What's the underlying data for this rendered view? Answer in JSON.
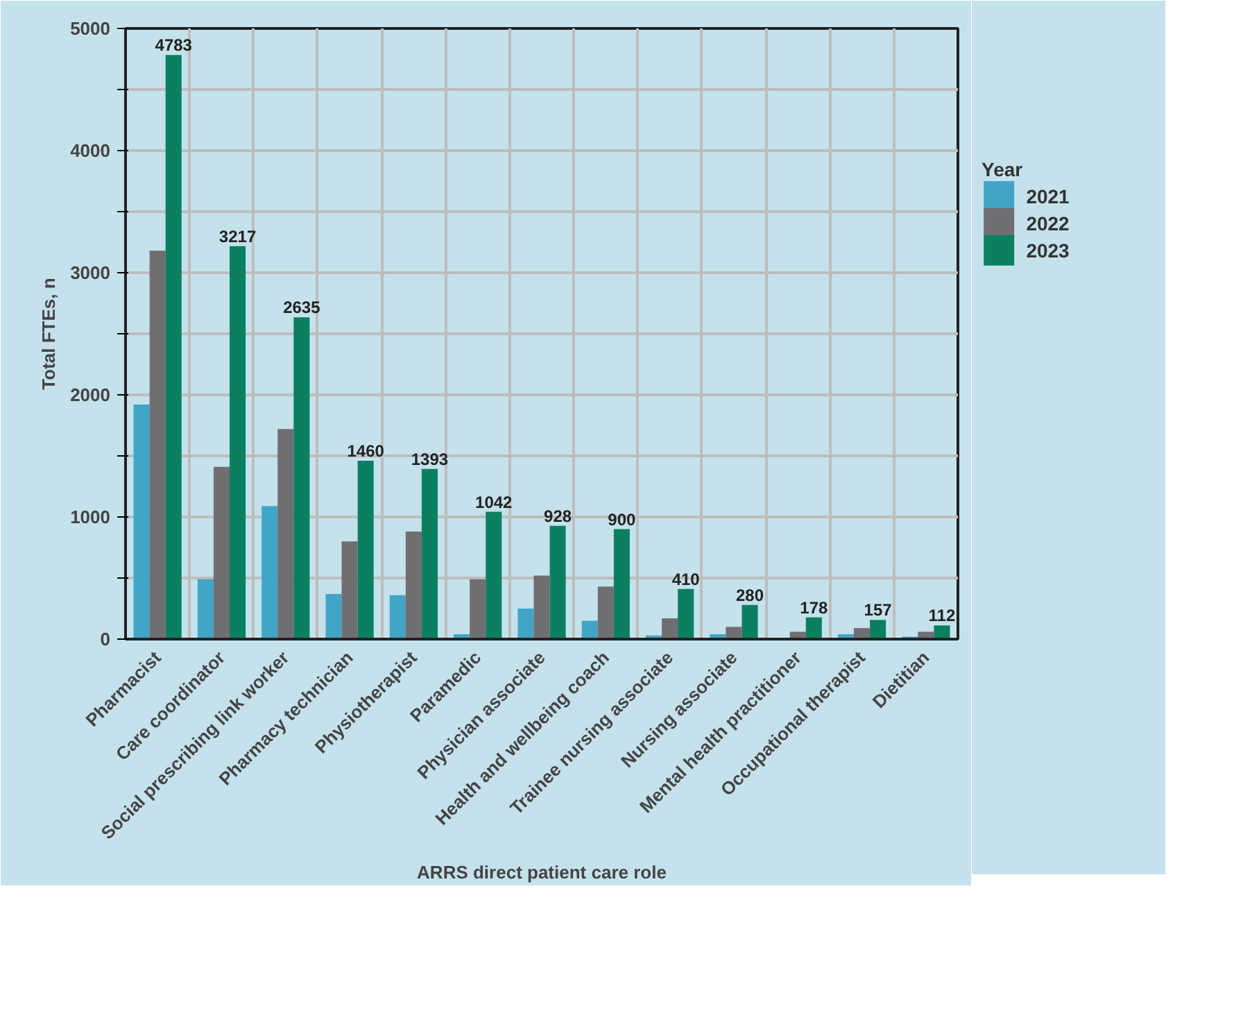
{
  "chart_data": {
    "type": "bar",
    "xlabel": "ARRS direct patient care role",
    "ylabel": "Total FTEs, n",
    "legend_title": "Year",
    "legend": "right",
    "categories": [
      "Pharmacist",
      "Care coordinator",
      "Social prescribing link worker",
      "Pharmacy technician",
      "Physiotherapist",
      "Paramedic",
      "Physician associate",
      "Health and wellbeing coach",
      "Trainee nursing associate",
      "Nursing associate",
      "Mental health practitioner",
      "Occupational therapist",
      "Dietitian"
    ],
    "series": [
      {
        "name": "2021",
        "color": "#41a6c6",
        "values": [
          1920,
          490,
          1090,
          370,
          360,
          40,
          250,
          150,
          30,
          40,
          null,
          40,
          20
        ]
      },
      {
        "name": "2022",
        "color": "#716e72",
        "values": [
          3180,
          1410,
          1720,
          800,
          880,
          490,
          520,
          430,
          170,
          100,
          60,
          90,
          60
        ]
      },
      {
        "name": "2023",
        "color": "#0b8060",
        "values": [
          4783,
          3217,
          2635,
          1460,
          1393,
          1042,
          928,
          900,
          410,
          280,
          178,
          157,
          112
        ],
        "value_labels": [
          "4783",
          "3217",
          "2635",
          "1460",
          "1393",
          "1042",
          "928",
          "900",
          "410",
          "280",
          "178",
          "157",
          "112"
        ]
      }
    ],
    "ylim": [
      0,
      5000
    ],
    "yticks": [
      0,
      {
        "value": 500,
        "label": null
      },
      1000,
      {
        "value": 1500,
        "label": null
      },
      2000,
      {
        "value": 2500,
        "label": null
      },
      3000,
      {
        "value": 3500,
        "label": null
      },
      4000,
      {
        "value": 4500,
        "label": null
      },
      5000
    ],
    "grid": true
  }
}
